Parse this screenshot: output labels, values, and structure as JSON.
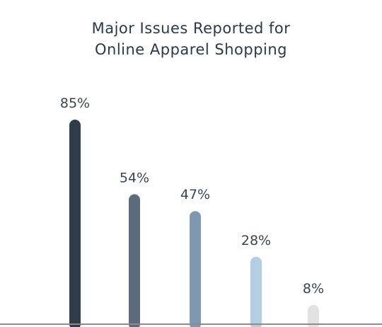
{
  "chart_data": {
    "type": "bar",
    "title_lines": [
      "Major Issues Reported for",
      "Online Apparel Shopping"
    ],
    "categories": [
      "",
      "",
      "",
      "",
      ""
    ],
    "values": [
      85,
      54,
      47,
      28,
      8
    ],
    "value_labels": [
      "85%",
      "54%",
      "47%",
      "28%",
      "8%"
    ],
    "unit": "%",
    "xlabel": "",
    "ylabel": "",
    "ylim": [
      0,
      100
    ],
    "grid": false,
    "legend": "none",
    "colors": [
      "#2f3d4a",
      "#5b6b79",
      "#7d98b0",
      "#b3cde2",
      "#e2e2e2"
    ],
    "baseline_color": "#8c8c8c",
    "label_color": "#3a4652"
  }
}
